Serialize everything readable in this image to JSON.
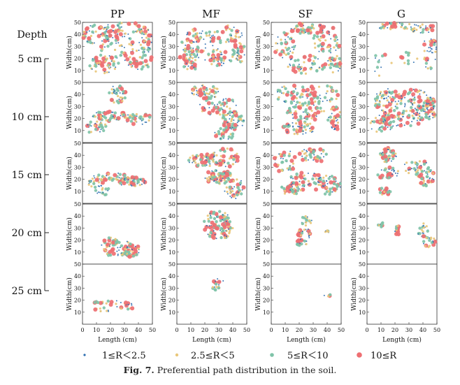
{
  "chart_data": {
    "type": "scatter",
    "column_titles": [
      "PP",
      "MF",
      "SF",
      "G"
    ],
    "depth_header": "Depth",
    "depths": [
      "5 cm",
      "10 cm",
      "15 cm",
      "20 cm",
      "25 cm"
    ],
    "xlabel": "Length (cm)",
    "ylabel": "Width(cm)",
    "xlim": [
      0,
      50
    ],
    "ylim": [
      0,
      50
    ],
    "xticks": [
      "0",
      "10",
      "20",
      "30",
      "40",
      "50"
    ],
    "yticks": [
      "10",
      "20",
      "30",
      "40",
      "50"
    ],
    "series": [
      {
        "name": "1≤R＜2.5",
        "color": "#2f6fb0"
      },
      {
        "name": "2.5≤R＜5",
        "color": "#e9c77a"
      },
      {
        "name": "5≤R＜10",
        "color": "#7fc3a8"
      },
      {
        "name": "10≤R",
        "color": "#ee6f72"
      }
    ]
  },
  "caption": {
    "label": "Fig. 7.",
    "text": "Preferential path distribution in the soil."
  }
}
